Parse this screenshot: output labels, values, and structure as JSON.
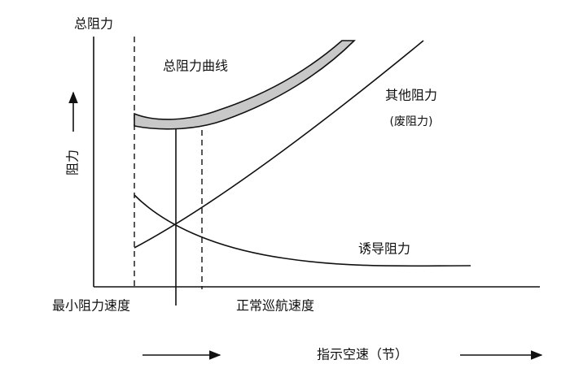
{
  "labels": {
    "y_axis_title": "总阻力",
    "total_curve": "总阻力曲线",
    "parasite_drag": "其他阻力",
    "parasite_drag_note": "(废阻力)",
    "drag_arrow": "阻力",
    "induced_drag": "诱导阻力",
    "min_drag_speed": "最小阻力速度",
    "cruise_speed": "正常巡航速度",
    "x_axis_title": "指示空速（节）"
  }
}
